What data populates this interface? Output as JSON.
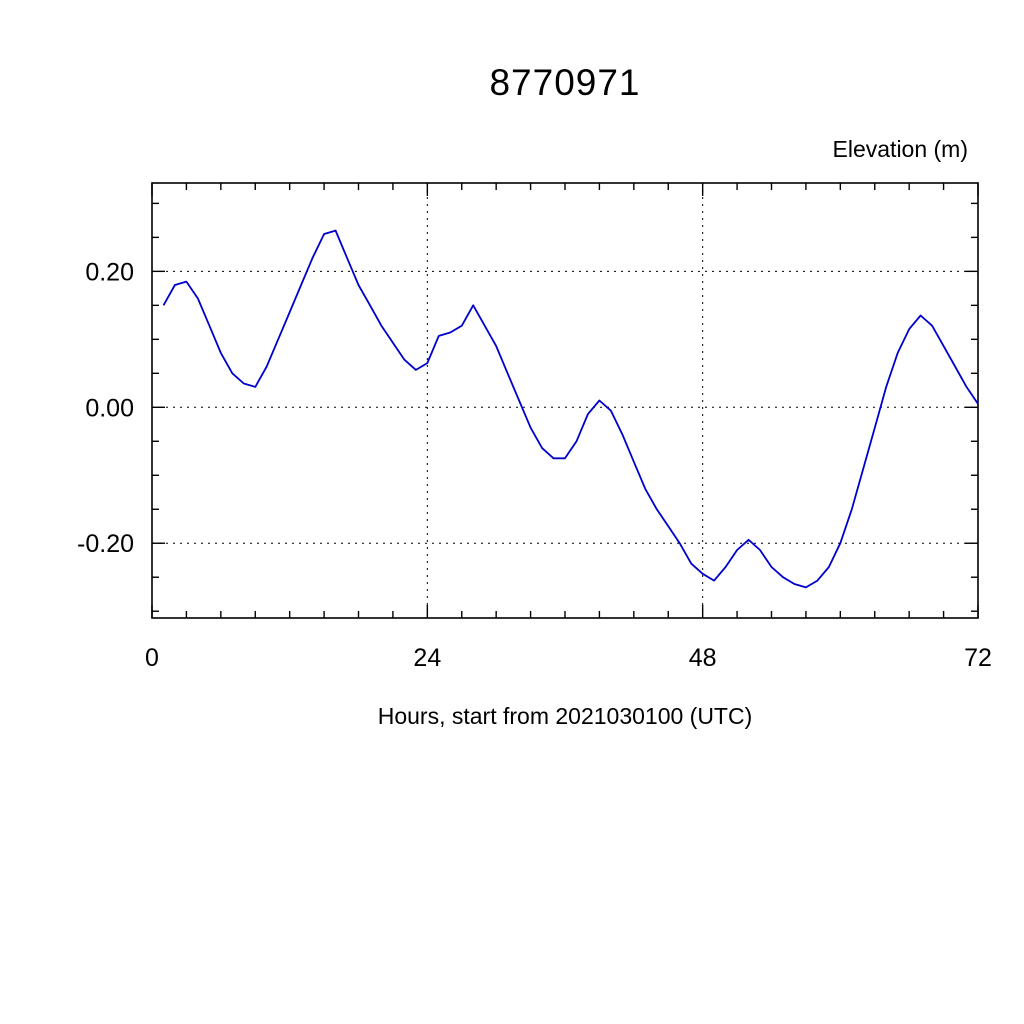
{
  "page": {
    "background": "#ffffff"
  },
  "chart_data": {
    "type": "line",
    "title": "8770971",
    "ylabel_top": "Elevation (m)",
    "xlabel": "Hours, start from 2021030100 (UTC)",
    "line_color": "#0000cc",
    "grid": true,
    "legend": "none",
    "xlim": [
      0,
      72
    ],
    "ylim": [
      -0.31,
      0.33
    ],
    "x_ticks": [
      {
        "value": 0,
        "label": "0"
      },
      {
        "value": 24,
        "label": "24"
      },
      {
        "value": 48,
        "label": "48"
      },
      {
        "value": 72,
        "label": "72"
      }
    ],
    "y_ticks": [
      {
        "value": 0.2,
        "label": "0.20"
      },
      {
        "value": 0.0,
        "label": "0.00"
      },
      {
        "value": -0.2,
        "label": "-0.20"
      }
    ],
    "x_gridlines": [
      24,
      48
    ],
    "y_gridlines": [
      0.2,
      0.0,
      -0.2
    ],
    "x_minor_step": 3,
    "y_minor_step": 0.05,
    "series": [
      {
        "name": "elevation",
        "x": [
          1,
          2,
          3,
          4,
          5,
          6,
          7,
          8,
          9,
          10,
          11,
          12,
          13,
          14,
          15,
          16,
          17,
          18,
          19,
          20,
          21,
          22,
          23,
          24,
          25,
          26,
          27,
          28,
          29,
          30,
          31,
          32,
          33,
          34,
          35,
          36,
          37,
          38,
          39,
          40,
          41,
          42,
          43,
          44,
          45,
          46,
          47,
          48,
          49,
          50,
          51,
          52,
          53,
          54,
          55,
          56,
          57,
          58,
          59,
          60,
          61,
          62,
          63,
          64,
          65,
          66,
          67,
          68,
          69,
          70,
          71,
          72
        ],
        "y": [
          0.15,
          0.18,
          0.185,
          0.16,
          0.12,
          0.08,
          0.05,
          0.035,
          0.03,
          0.06,
          0.1,
          0.14,
          0.18,
          0.22,
          0.255,
          0.26,
          0.22,
          0.18,
          0.15,
          0.12,
          0.095,
          0.07,
          0.055,
          0.065,
          0.105,
          0.11,
          0.12,
          0.15,
          0.12,
          0.09,
          0.05,
          0.01,
          -0.03,
          -0.06,
          -0.075,
          -0.075,
          -0.05,
          -0.01,
          0.01,
          -0.005,
          -0.04,
          -0.08,
          -0.12,
          -0.15,
          -0.175,
          -0.2,
          -0.23,
          -0.245,
          -0.255,
          -0.235,
          -0.21,
          -0.195,
          -0.21,
          -0.235,
          -0.25,
          -0.26,
          -0.265,
          -0.255,
          -0.235,
          -0.2,
          -0.15,
          -0.09,
          -0.03,
          0.03,
          0.08,
          0.115,
          0.135,
          0.12,
          0.09,
          0.06,
          0.03,
          0.005
        ]
      }
    ]
  }
}
